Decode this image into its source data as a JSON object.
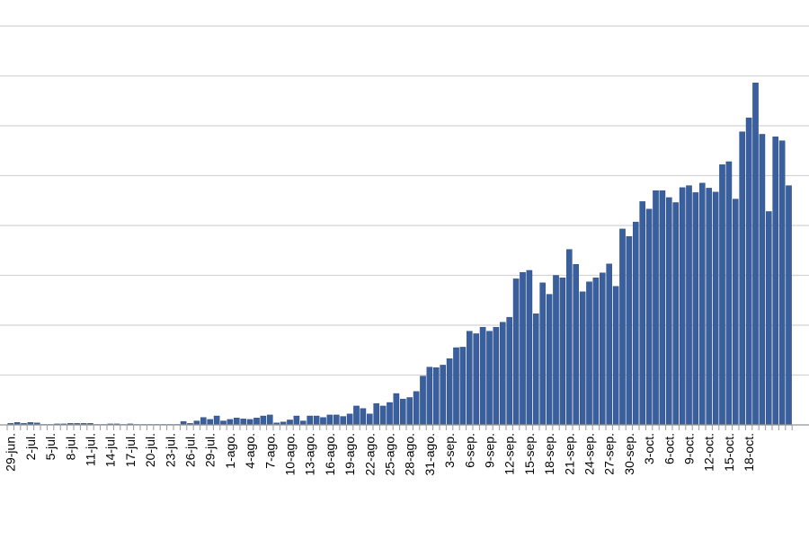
{
  "chart_data": {
    "type": "bar",
    "title": "",
    "xlabel": "",
    "ylabel": "",
    "grid": true,
    "colors": {
      "bar": "#3A5F9E",
      "bar_edge": "#27467A",
      "grid": "#D4D4D4",
      "axis": "#9A9A9A"
    },
    "tick_labels": [
      "29-jun.",
      "2-jul.",
      "5-jul.",
      "8-jul.",
      "11-jul.",
      "14-jul.",
      "17-jul.",
      "20-jul.",
      "23-jul.",
      "26-jul.",
      "29-jul.",
      "1-ago.",
      "4-ago.",
      "7-ago.",
      "10-ago.",
      "13-ago.",
      "16-ago.",
      "19-ago.",
      "22-ago.",
      "25-ago.",
      "28-ago.",
      "31-ago.",
      "3-sep.",
      "6-sep.",
      "9-sep.",
      "12-sep.",
      "15-sep.",
      "18-sep.",
      "21-sep.",
      "24-sep.",
      "27-sep.",
      "30-sep.",
      "3-oct.",
      "6-oct.",
      "9-oct.",
      "12-oct.",
      "15-oct.",
      "18-oct."
    ],
    "ylim": [
      0,
      8
    ],
    "series": [
      {
        "values": [
          0.03,
          0.05,
          0.03,
          0.05,
          0.04,
          0.01,
          0.01,
          0.02,
          0.02,
          0.03,
          0.03,
          0.03,
          0.03,
          0.01,
          0.01,
          0.02,
          0.02,
          0.01,
          0.02,
          0.01,
          0.01,
          0.01,
          0.01,
          0.01,
          0.01,
          0.01,
          0.07,
          0.03,
          0.08,
          0.15,
          0.11,
          0.18,
          0.08,
          0.11,
          0.14,
          0.12,
          0.11,
          0.14,
          0.18,
          0.2,
          0.04,
          0.06,
          0.1,
          0.18,
          0.08,
          0.18,
          0.18,
          0.15,
          0.2,
          0.2,
          0.17,
          0.22,
          0.38,
          0.33,
          0.22,
          0.43,
          0.38,
          0.45,
          0.63,
          0.52,
          0.55,
          0.67,
          0.98,
          1.16,
          1.15,
          1.2,
          1.33,
          1.55,
          1.56,
          1.88,
          1.83,
          1.96,
          1.88,
          1.96,
          2.06,
          2.16,
          2.93,
          3.06,
          3.1,
          2.23,
          2.85,
          2.62,
          3.0,
          2.95,
          3.52,
          3.22,
          2.67,
          2.87,
          2.95,
          3.05,
          3.23,
          2.78,
          3.93,
          3.78,
          4.07,
          4.48,
          4.33,
          4.7,
          4.7,
          4.56,
          4.46,
          4.76,
          4.8,
          4.66,
          4.85,
          4.75,
          4.67,
          5.22,
          5.28,
          4.53,
          5.88,
          6.16,
          6.86,
          5.83,
          4.28,
          5.78,
          5.7,
          4.8
        ]
      }
    ]
  }
}
